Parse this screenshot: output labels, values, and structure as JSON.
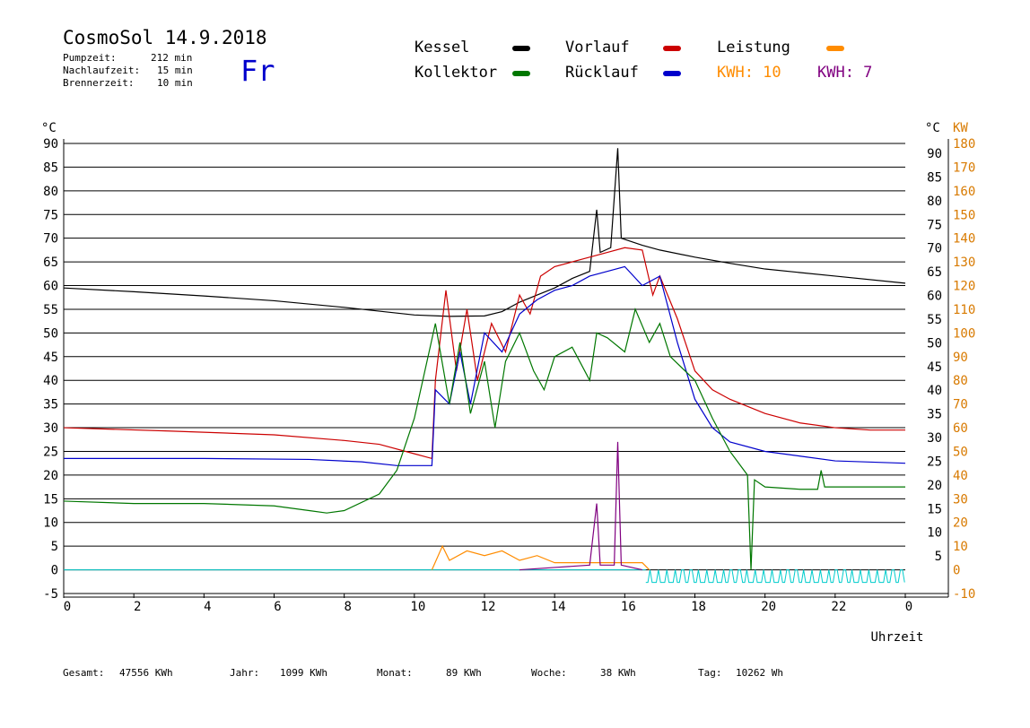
{
  "header": {
    "title": "CosmoSol 14.9.2018",
    "pump_label": "Pumpzeit:",
    "pump_value": "212 min",
    "nachlauf_label": "Nachlaufzeit:",
    "nachlauf_value": "15 min",
    "brenner_label": "Brennerzeit:",
    "brenner_value": "10 min",
    "day": "Fr"
  },
  "legend": {
    "kessel": "Kessel",
    "vorlauf": "Vorlauf",
    "leistung": "Leistung",
    "kollektor": "Kollektor",
    "ruecklauf": "Rücklauf",
    "kwh1": "KWH: 10",
    "kwh2": "KWH: 7"
  },
  "colors": {
    "kessel": "#000000",
    "vorlauf": "#cc0000",
    "ruecklauf": "#0000cc",
    "kollektor": "#007700",
    "leistung": "#ff8c00",
    "kwh2": "#800080",
    "cyan": "#00cccc"
  },
  "footer": {
    "gesamt_label": "Gesamt:",
    "gesamt_value": "47556 KWh",
    "jahr_label": "Jahr:",
    "jahr_value": "1099 KWh",
    "monat_label": "Monat:",
    "monat_value": "89 KWh",
    "woche_label": "Woche:",
    "woche_value": "38 KWh",
    "tag_label": "Tag:",
    "tag_value": "10262 Wh"
  },
  "chart_data": {
    "type": "line",
    "xlabel": "Uhrzeit",
    "ylabel_left": "°C",
    "ylabel_right_temp": "°C",
    "ylabel_right_power": "KW",
    "xlim": [
      0,
      24
    ],
    "ylim": [
      -5,
      90
    ],
    "ylim_power": [
      -10,
      180
    ],
    "x_ticks": [
      "0",
      "2",
      "4",
      "6",
      "8",
      "10",
      "12",
      "14",
      "16",
      "18",
      "20",
      "22",
      "0"
    ],
    "y_ticks_left": [
      "-5",
      "0",
      "5",
      "10",
      "15",
      "20",
      "25",
      "30",
      "35",
      "40",
      "45",
      "50",
      "55",
      "60",
      "65",
      "70",
      "75",
      "80",
      "85",
      "90"
    ],
    "y_ticks_right": [
      "5",
      "10",
      "15",
      "20",
      "25",
      "30",
      "35",
      "40",
      "45",
      "50",
      "55",
      "60",
      "65",
      "70",
      "75",
      "80",
      "85",
      "90"
    ],
    "y_ticks_power": [
      "-10",
      "0",
      "10",
      "20",
      "30",
      "40",
      "50",
      "60",
      "70",
      "80",
      "90",
      "100",
      "110",
      "120",
      "130",
      "140",
      "150",
      "160",
      "170",
      "180"
    ],
    "grid": true,
    "series": [
      {
        "name": "Kessel",
        "color": "#000000",
        "points": [
          [
            0,
            59.5
          ],
          [
            2,
            58.7
          ],
          [
            4,
            57.8
          ],
          [
            6,
            56.8
          ],
          [
            8,
            55.4
          ],
          [
            10,
            53.8
          ],
          [
            11,
            53.5
          ],
          [
            12,
            53.6
          ],
          [
            12.5,
            54.5
          ],
          [
            13,
            56.5
          ],
          [
            13.5,
            58
          ],
          [
            14,
            59.5
          ],
          [
            14.5,
            61.5
          ],
          [
            15,
            63
          ],
          [
            15.2,
            76
          ],
          [
            15.3,
            67
          ],
          [
            15.6,
            68
          ],
          [
            15.8,
            89
          ],
          [
            15.9,
            70
          ],
          [
            16.5,
            68.5
          ],
          [
            17,
            67.5
          ],
          [
            18,
            66
          ],
          [
            19,
            64.7
          ],
          [
            20,
            63.5
          ],
          [
            22,
            62
          ],
          [
            24,
            60.5
          ]
        ]
      },
      {
        "name": "Vorlauf",
        "color": "#cc0000",
        "points": [
          [
            0,
            30
          ],
          [
            3,
            29.3
          ],
          [
            6,
            28.5
          ],
          [
            8,
            27.3
          ],
          [
            9,
            26.5
          ],
          [
            10,
            24.5
          ],
          [
            10.5,
            23.5
          ],
          [
            10.6,
            40
          ],
          [
            10.9,
            59
          ],
          [
            11.2,
            42
          ],
          [
            11.5,
            55
          ],
          [
            11.8,
            40
          ],
          [
            12.2,
            52
          ],
          [
            12.6,
            46
          ],
          [
            13,
            58
          ],
          [
            13.3,
            54
          ],
          [
            13.6,
            62
          ],
          [
            14,
            64
          ],
          [
            14.5,
            65
          ],
          [
            15,
            66
          ],
          [
            15.5,
            67
          ],
          [
            16,
            68
          ],
          [
            16.5,
            67.5
          ],
          [
            16.8,
            58
          ],
          [
            17,
            62
          ],
          [
            17.5,
            53
          ],
          [
            18,
            42
          ],
          [
            18.5,
            38
          ],
          [
            19,
            36
          ],
          [
            20,
            33
          ],
          [
            21,
            31
          ],
          [
            22,
            30
          ],
          [
            23,
            29.5
          ],
          [
            24,
            29.5
          ]
        ]
      },
      {
        "name": "Rücklauf",
        "color": "#0000cc",
        "points": [
          [
            0,
            23.5
          ],
          [
            4,
            23.5
          ],
          [
            7,
            23.3
          ],
          [
            8.5,
            22.8
          ],
          [
            9.5,
            22
          ],
          [
            10.5,
            22
          ],
          [
            10.6,
            38
          ],
          [
            11,
            35
          ],
          [
            11.3,
            46
          ],
          [
            11.6,
            35
          ],
          [
            12,
            50
          ],
          [
            12.5,
            46
          ],
          [
            13,
            54
          ],
          [
            13.5,
            57
          ],
          [
            14,
            59
          ],
          [
            14.5,
            60
          ],
          [
            15,
            62
          ],
          [
            15.5,
            63
          ],
          [
            16,
            64
          ],
          [
            16.5,
            60
          ],
          [
            17,
            62
          ],
          [
            17.5,
            48
          ],
          [
            18,
            36
          ],
          [
            18.5,
            30
          ],
          [
            19,
            27
          ],
          [
            20,
            25
          ],
          [
            21,
            24
          ],
          [
            22,
            23
          ],
          [
            24,
            22.5
          ]
        ]
      },
      {
        "name": "Kollektor",
        "color": "#007700",
        "points": [
          [
            0,
            14.5
          ],
          [
            2,
            14
          ],
          [
            4,
            14
          ],
          [
            6,
            13.5
          ],
          [
            7,
            12.5
          ],
          [
            7.5,
            12
          ],
          [
            8,
            12.5
          ],
          [
            9,
            16
          ],
          [
            9.5,
            21
          ],
          [
            10,
            32
          ],
          [
            10.6,
            52
          ],
          [
            11,
            35
          ],
          [
            11.3,
            48
          ],
          [
            11.6,
            33
          ],
          [
            12,
            44
          ],
          [
            12.3,
            30
          ],
          [
            12.6,
            44
          ],
          [
            13,
            50
          ],
          [
            13.4,
            42
          ],
          [
            13.7,
            38
          ],
          [
            14,
            45
          ],
          [
            14.5,
            47
          ],
          [
            15,
            40
          ],
          [
            15.2,
            50
          ],
          [
            15.5,
            49
          ],
          [
            16,
            46
          ],
          [
            16.3,
            55
          ],
          [
            16.7,
            48
          ],
          [
            17,
            52
          ],
          [
            17.3,
            45
          ],
          [
            18,
            40
          ],
          [
            18.5,
            32
          ],
          [
            19,
            25
          ],
          [
            19.5,
            20
          ],
          [
            19.6,
            0
          ],
          [
            19.7,
            19
          ],
          [
            20,
            17.5
          ],
          [
            21,
            17
          ],
          [
            21.5,
            17
          ],
          [
            21.6,
            21
          ],
          [
            21.7,
            17.5
          ],
          [
            23,
            17.5
          ],
          [
            24,
            17.5
          ]
        ]
      },
      {
        "name": "Leistung",
        "color": "#ff8c00",
        "points": [
          [
            10.5,
            0
          ],
          [
            10.8,
            5
          ],
          [
            11,
            2
          ],
          [
            11.5,
            4
          ],
          [
            12,
            3
          ],
          [
            12.5,
            4
          ],
          [
            13,
            2
          ],
          [
            13.5,
            3
          ],
          [
            14,
            1.5
          ],
          [
            15,
            1.5
          ],
          [
            16,
            1.5
          ],
          [
            16.5,
            1.5
          ],
          [
            16.7,
            0
          ]
        ]
      },
      {
        "name": "KWH: 7",
        "color": "#800080",
        "points": [
          [
            13,
            0
          ],
          [
            14,
            0.5
          ],
          [
            15,
            1
          ],
          [
            15.2,
            14
          ],
          [
            15.3,
            1
          ],
          [
            15.7,
            1
          ],
          [
            15.8,
            27
          ],
          [
            15.9,
            1
          ],
          [
            16.5,
            0
          ]
        ]
      }
    ]
  }
}
